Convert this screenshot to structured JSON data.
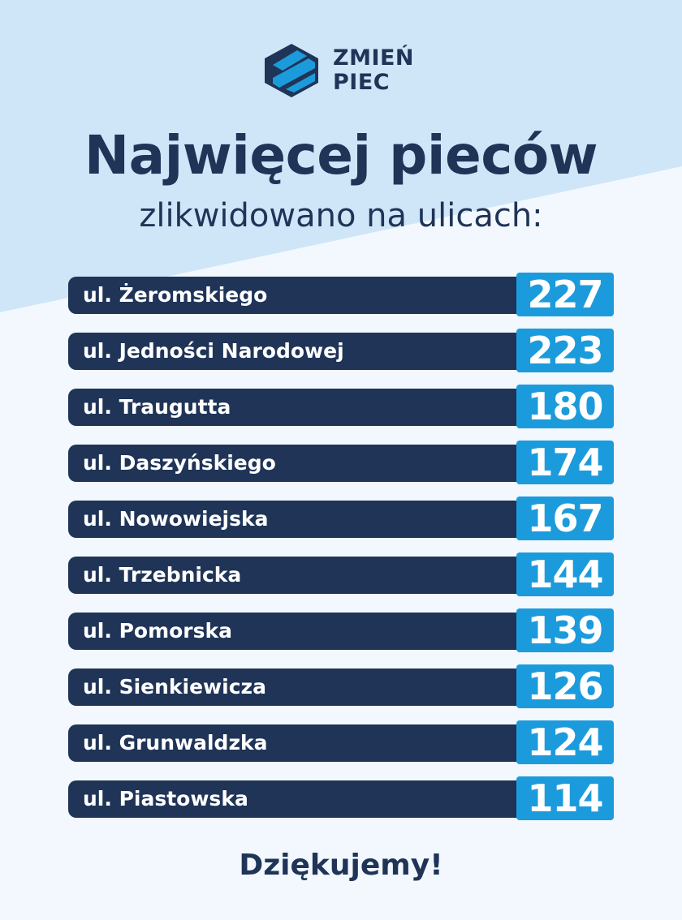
{
  "colors": {
    "navy": "#1f3457",
    "accent_blue": "#1c9bdc",
    "background_light_blue": "#cfe6f8",
    "background_white_wedge": "#f2f8fd"
  },
  "logo": {
    "icon": "zmien-piec-logo-icon",
    "line1": "ZMIEŃ",
    "line2": "PIEC"
  },
  "title": "Najwięcej pieców",
  "subtitle": "zlikwidowano na ulicach:",
  "chart_data": {
    "type": "table",
    "rows": [
      {
        "street": "ul. Żeromskiego",
        "value": "227"
      },
      {
        "street": "ul. Jedności Narodowej",
        "value": "223"
      },
      {
        "street": "ul. Traugutta",
        "value": "180"
      },
      {
        "street": "ul. Daszyńskiego",
        "value": "174"
      },
      {
        "street": "ul. Nowowiejska",
        "value": "167"
      },
      {
        "street": "ul. Trzebnicka",
        "value": "144"
      },
      {
        "street": "ul. Pomorska",
        "value": "139"
      },
      {
        "street": "ul. Sienkiewicza",
        "value": "126"
      },
      {
        "street": "ul. Grunwaldzka",
        "value": "124"
      },
      {
        "street": "ul. Piastowska",
        "value": "114"
      }
    ]
  },
  "footer": "Dziękujemy!"
}
